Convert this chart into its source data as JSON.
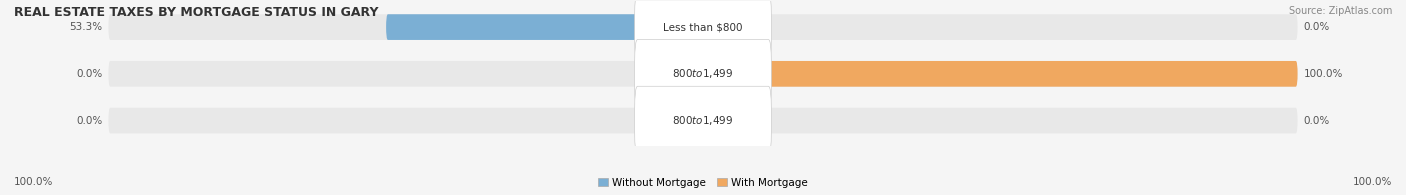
{
  "title": "REAL ESTATE TAXES BY MORTGAGE STATUS IN GARY",
  "source": "Source: ZipAtlas.com",
  "rows": [
    {
      "label": "Less than $800",
      "without_mortgage": 53.3,
      "with_mortgage": 0.0,
      "without_pct_label": "53.3%",
      "with_pct_label": "0.0%"
    },
    {
      "label": "$800 to $1,499",
      "without_mortgage": 0.0,
      "with_mortgage": 100.0,
      "without_pct_label": "0.0%",
      "with_pct_label": "100.0%"
    },
    {
      "label": "$800 to $1,499",
      "without_mortgage": 0.0,
      "with_mortgage": 0.0,
      "without_pct_label": "0.0%",
      "with_pct_label": "0.0%"
    }
  ],
  "color_without": "#7BAFD4",
  "color_with": "#F0A860",
  "color_bg_bar": "#E8E8E8",
  "color_label_box": "#FFFFFF",
  "legend_without": "Without Mortgage",
  "legend_with": "With Mortgage",
  "left_axis_label": "100.0%",
  "right_axis_label": "100.0%",
  "bar_height": 0.55,
  "figsize": [
    14.06,
    1.95
  ],
  "dpi": 100
}
